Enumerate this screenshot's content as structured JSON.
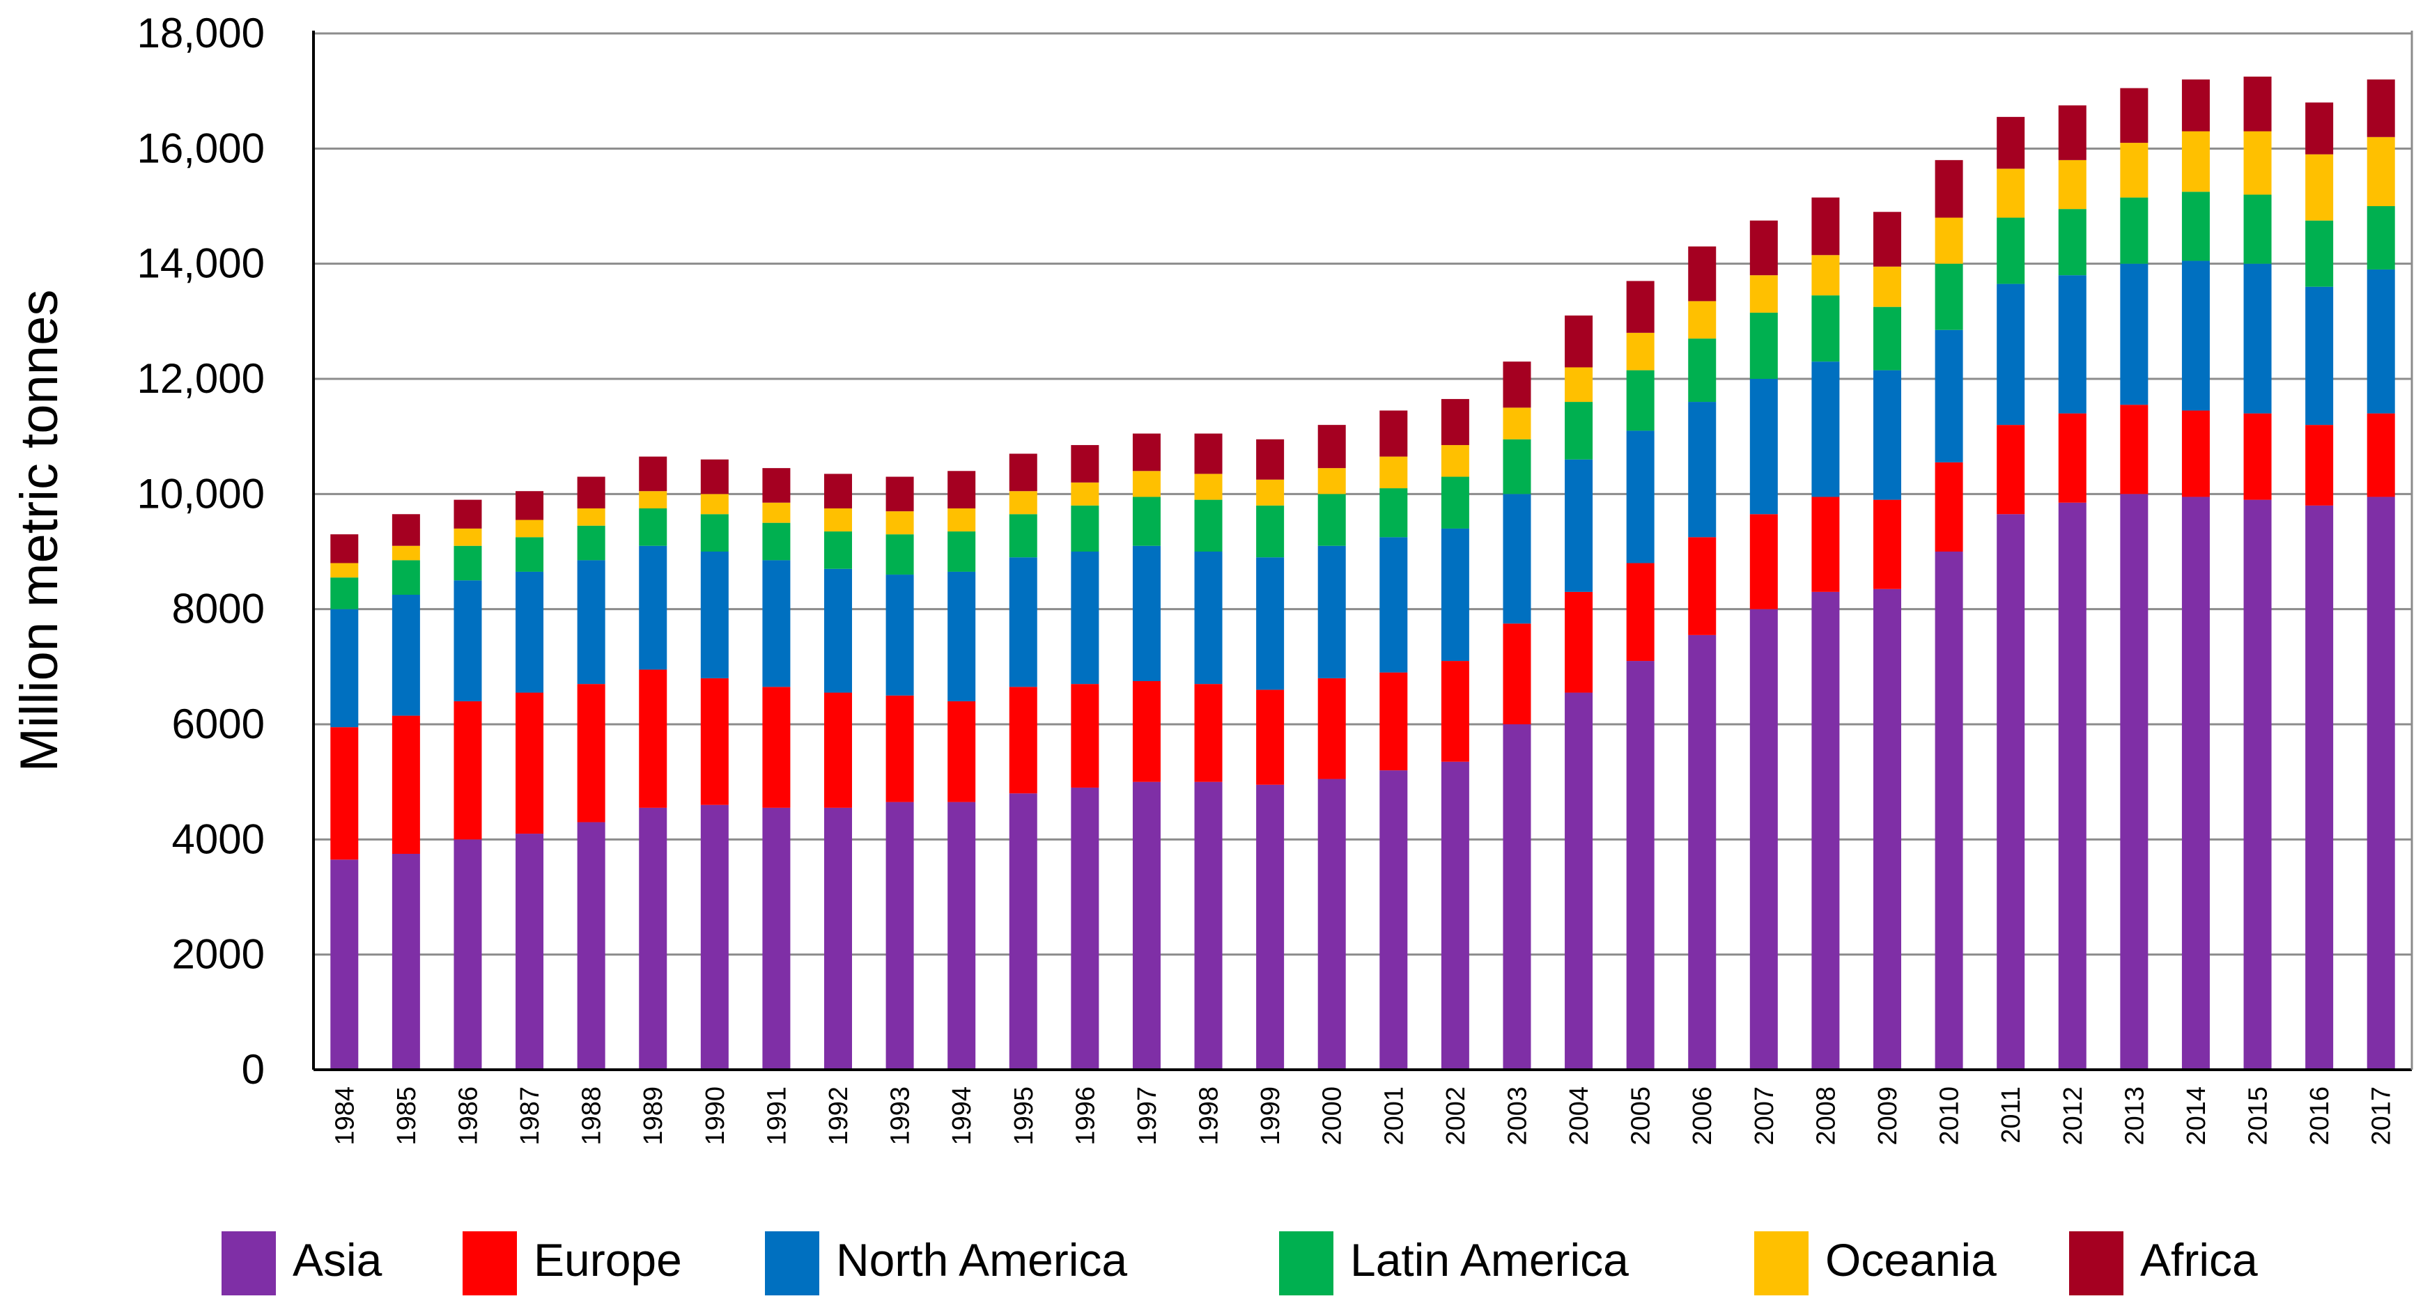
{
  "chart_data": {
    "type": "bar",
    "stacked": true,
    "title": "",
    "xlabel": "",
    "ylabel": "Million metric tonnes",
    "ylim": [
      0,
      18000
    ],
    "yticks": [
      {
        "value": 0,
        "label": "0"
      },
      {
        "value": 2000,
        "label": "2000"
      },
      {
        "value": 4000,
        "label": "4000"
      },
      {
        "value": 6000,
        "label": "6000"
      },
      {
        "value": 8000,
        "label": "8000"
      },
      {
        "value": 10000,
        "label": "10,000"
      },
      {
        "value": 12000,
        "label": "12,000"
      },
      {
        "value": 14000,
        "label": "14,000"
      },
      {
        "value": 16000,
        "label": "16,000"
      },
      {
        "value": 18000,
        "label": "18,000"
      }
    ],
    "grid": true,
    "legend_position": "bottom",
    "categories": [
      "1984",
      "1985",
      "1986",
      "1987",
      "1988",
      "1989",
      "1990",
      "1991",
      "1992",
      "1993",
      "1994",
      "1995",
      "1996",
      "1997",
      "1998",
      "1999",
      "2000",
      "2001",
      "2002",
      "2003",
      "2004",
      "2005",
      "2006",
      "2007",
      "2008",
      "2009",
      "2010",
      "2011",
      "2012",
      "2013",
      "2014",
      "2015",
      "2016",
      "2017"
    ],
    "series": [
      {
        "name": "Asia",
        "color": "#7F2FA6",
        "values": [
          3650,
          3750,
          4000,
          4100,
          4300,
          4550,
          4600,
          4550,
          4550,
          4650,
          4650,
          4800,
          4900,
          5000,
          5000,
          4950,
          5050,
          5200,
          5350,
          6000,
          6550,
          7100,
          7550,
          8000,
          8300,
          8350,
          9000,
          9650,
          9850,
          10000,
          9950,
          9900,
          9800,
          9950
        ]
      },
      {
        "name": "Europe",
        "color": "#FF0000",
        "values": [
          2300,
          2400,
          2400,
          2450,
          2400,
          2400,
          2200,
          2100,
          2000,
          1850,
          1750,
          1850,
          1800,
          1750,
          1700,
          1650,
          1750,
          1700,
          1750,
          1750,
          1750,
          1700,
          1700,
          1650,
          1650,
          1550,
          1550,
          1550,
          1550,
          1550,
          1500,
          1500,
          1400,
          1450
        ]
      },
      {
        "name": "North America",
        "color": "#0070C0",
        "values": [
          2050,
          2100,
          2100,
          2100,
          2150,
          2150,
          2200,
          2200,
          2150,
          2100,
          2250,
          2250,
          2300,
          2350,
          2300,
          2300,
          2300,
          2350,
          2300,
          2250,
          2300,
          2300,
          2350,
          2350,
          2350,
          2250,
          2300,
          2450,
          2400,
          2450,
          2600,
          2600,
          2400,
          2500
        ]
      },
      {
        "name": "Latin America",
        "color": "#00B050",
        "values": [
          550,
          600,
          600,
          600,
          600,
          650,
          650,
          650,
          650,
          700,
          700,
          750,
          800,
          850,
          900,
          900,
          900,
          850,
          900,
          950,
          1000,
          1050,
          1100,
          1150,
          1150,
          1100,
          1150,
          1150,
          1150,
          1150,
          1200,
          1200,
          1150,
          1100
        ]
      },
      {
        "name": "Oceania",
        "color": "#FFC000",
        "values": [
          250,
          250,
          300,
          300,
          300,
          300,
          350,
          350,
          400,
          400,
          400,
          400,
          400,
          450,
          450,
          450,
          450,
          550,
          550,
          550,
          600,
          650,
          650,
          650,
          700,
          700,
          800,
          850,
          850,
          950,
          1050,
          1100,
          1150,
          1200
        ]
      },
      {
        "name": "Africa",
        "color": "#A50021",
        "values": [
          500,
          550,
          500,
          500,
          550,
          600,
          600,
          600,
          600,
          600,
          650,
          650,
          650,
          650,
          700,
          700,
          750,
          800,
          800,
          800,
          900,
          900,
          950,
          950,
          1000,
          950,
          1000,
          900,
          950,
          950,
          900,
          950,
          900,
          1000
        ]
      }
    ]
  }
}
